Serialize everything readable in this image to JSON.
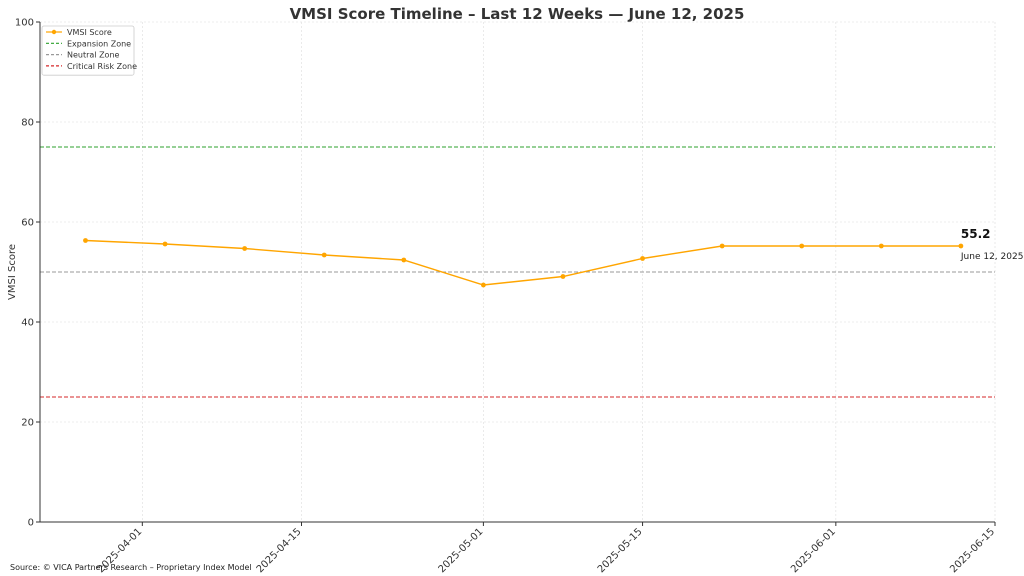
{
  "chart_data": {
    "type": "line",
    "title": "VMSI Score Timeline – Last 12 Weeks — June 12, 2025",
    "xlabel": "",
    "ylabel": "VMSI Score",
    "ylim": [
      0,
      100
    ],
    "yticks": [
      0,
      20,
      40,
      60,
      80,
      100
    ],
    "xlim": [
      "2025-03-23",
      "2025-06-15"
    ],
    "xticks": [
      "2025-04-01",
      "2025-04-15",
      "2025-05-01",
      "2025-05-15",
      "2025-06-01",
      "2025-06-15"
    ],
    "grid": true,
    "legend_position": "top-left",
    "series": [
      {
        "name": "VMSI Score",
        "color": "#FFA500",
        "x": [
          "2025-03-27",
          "2025-04-03",
          "2025-04-10",
          "2025-04-17",
          "2025-04-24",
          "2025-05-01",
          "2025-05-08",
          "2025-05-15",
          "2025-05-22",
          "2025-05-29",
          "2025-06-05",
          "2025-06-12"
        ],
        "y": [
          56.3,
          55.6,
          54.7,
          53.4,
          52.4,
          47.4,
          49.1,
          52.7,
          55.2,
          55.2,
          55.2,
          55.2
        ]
      }
    ],
    "reference_lines": [
      {
        "name": "Expansion Zone",
        "y": 75,
        "color": "#2ca02c"
      },
      {
        "name": "Neutral Zone",
        "y": 50,
        "color": "#999999"
      },
      {
        "name": "Critical Risk Zone",
        "y": 25,
        "color": "#d62728"
      }
    ],
    "annotations": [
      {
        "x": "2025-06-12",
        "y": 55.2,
        "value_text": "55.2",
        "date_text": "June 12, 2025"
      }
    ]
  },
  "footer": {
    "source": "Source: © VICA Partners Research – Proprietary Index Model"
  }
}
